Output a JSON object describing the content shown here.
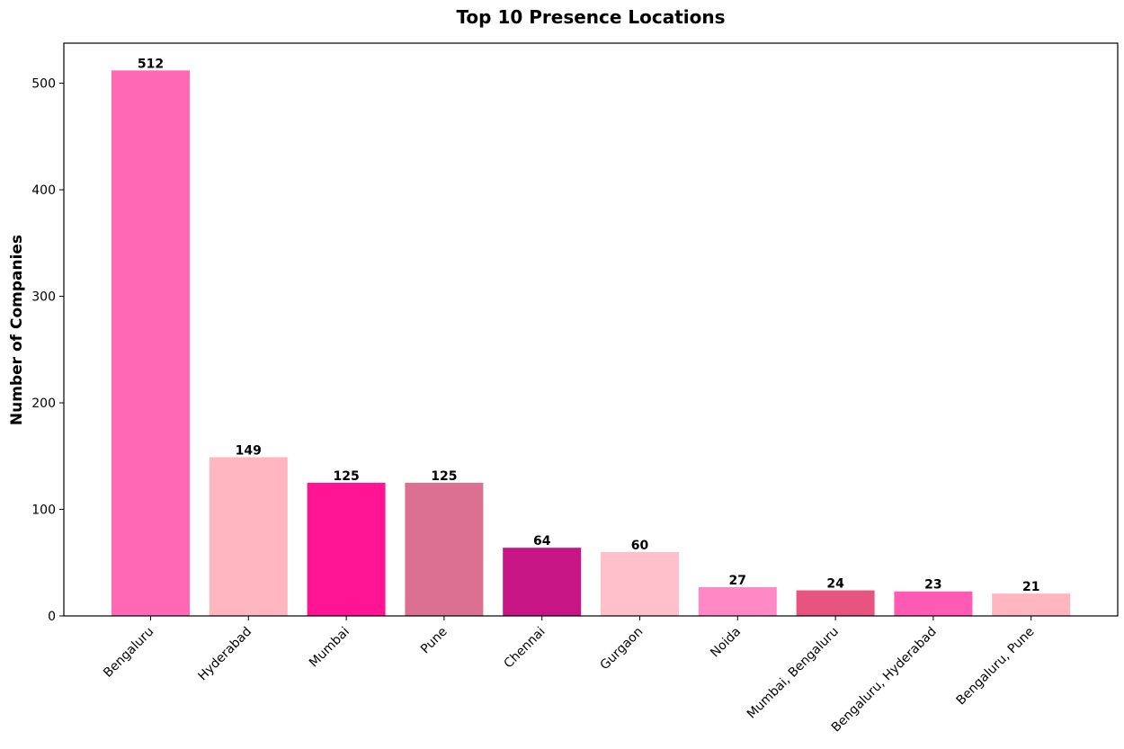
{
  "chart_data": {
    "type": "bar",
    "title": "Top 10 Presence Locations",
    "xlabel": "",
    "ylabel": "Number of Companies",
    "categories": [
      "Bengaluru",
      "Hyderabad",
      "Mumbai",
      "Pune",
      "Chennai",
      "Gurgaon",
      "Noida",
      "Mumbai, Bengaluru",
      "Bengaluru, Hyderabad",
      "Bengaluru, Pune"
    ],
    "values": [
      512,
      149,
      125,
      125,
      64,
      60,
      27,
      24,
      23,
      21
    ],
    "colors": [
      "#ff69b4",
      "#ffb6c1",
      "#ff1493",
      "#db7093",
      "#c71585",
      "#ffc0cb",
      "#ff88c5",
      "#e75480",
      "#ff5bb5",
      "#ffb6c1"
    ],
    "ylim": [
      0,
      537.6
    ],
    "yticks": [
      0,
      100,
      200,
      300,
      400,
      500
    ],
    "grid": false,
    "legend": "none"
  }
}
